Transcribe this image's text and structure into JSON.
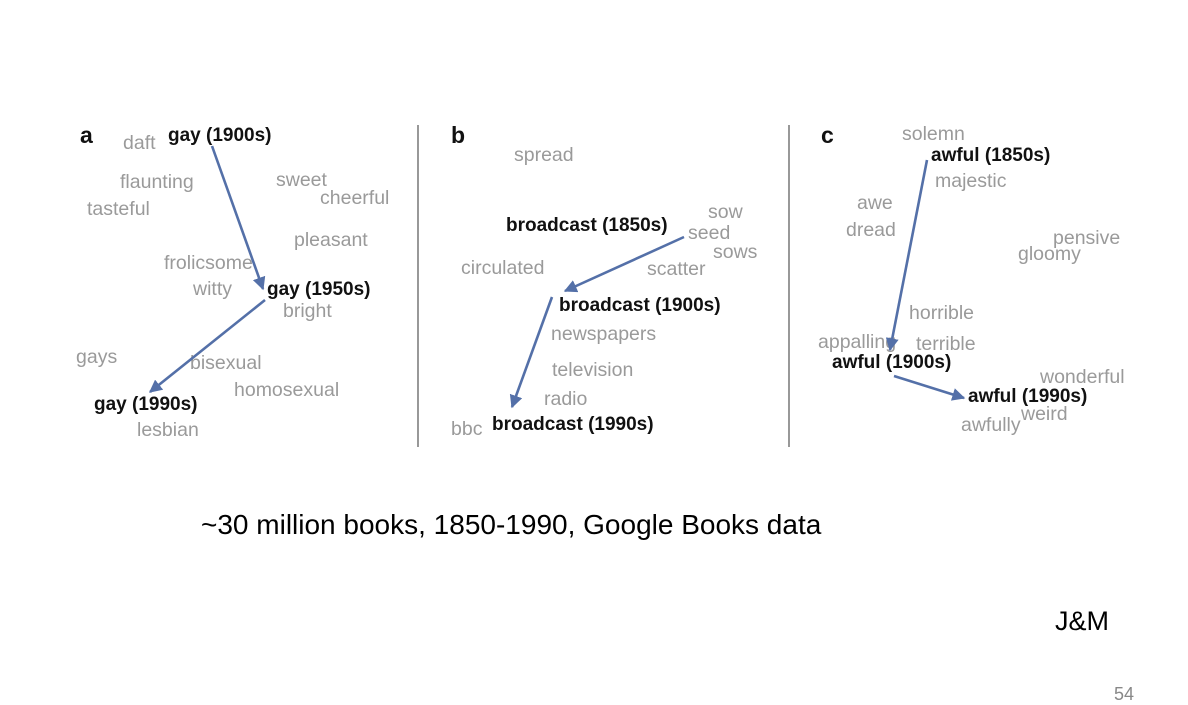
{
  "panels": [
    {
      "label": "a",
      "words": [
        "daft",
        "flaunting",
        "tasteful",
        "sweet",
        "cheerful",
        "pleasant",
        "frolicsome",
        "witty",
        "bright",
        "gays",
        "bisexual",
        "homosexual",
        "lesbian"
      ],
      "keys": [
        "gay (1900s)",
        "gay (1950s)",
        "gay (1990s)"
      ]
    },
    {
      "label": "b",
      "words": [
        "spread",
        "sow",
        "seed",
        "sows",
        "circulated",
        "scatter",
        "newspapers",
        "television",
        "radio",
        "bbc"
      ],
      "keys": [
        "broadcast (1850s)",
        "broadcast (1900s)",
        "broadcast (1990s)"
      ]
    },
    {
      "label": "c",
      "words": [
        "solemn",
        "majestic",
        "awe",
        "dread",
        "pensive",
        "gloomy",
        "horrible",
        "appalling",
        "terrible",
        "wonderful",
        "weird",
        "awfully"
      ],
      "keys": [
        "awful (1850s)",
        "awful (1900s)",
        "awful (1990s)"
      ]
    }
  ],
  "colors": {
    "arrow": "#5470a8",
    "neighbor_word": "#9a9a9a",
    "key_word": "#111111",
    "divider": "#555555"
  },
  "caption": "~30 million books, 1850-1990, Google Books data",
  "credit": "J&M",
  "page_number": "54"
}
